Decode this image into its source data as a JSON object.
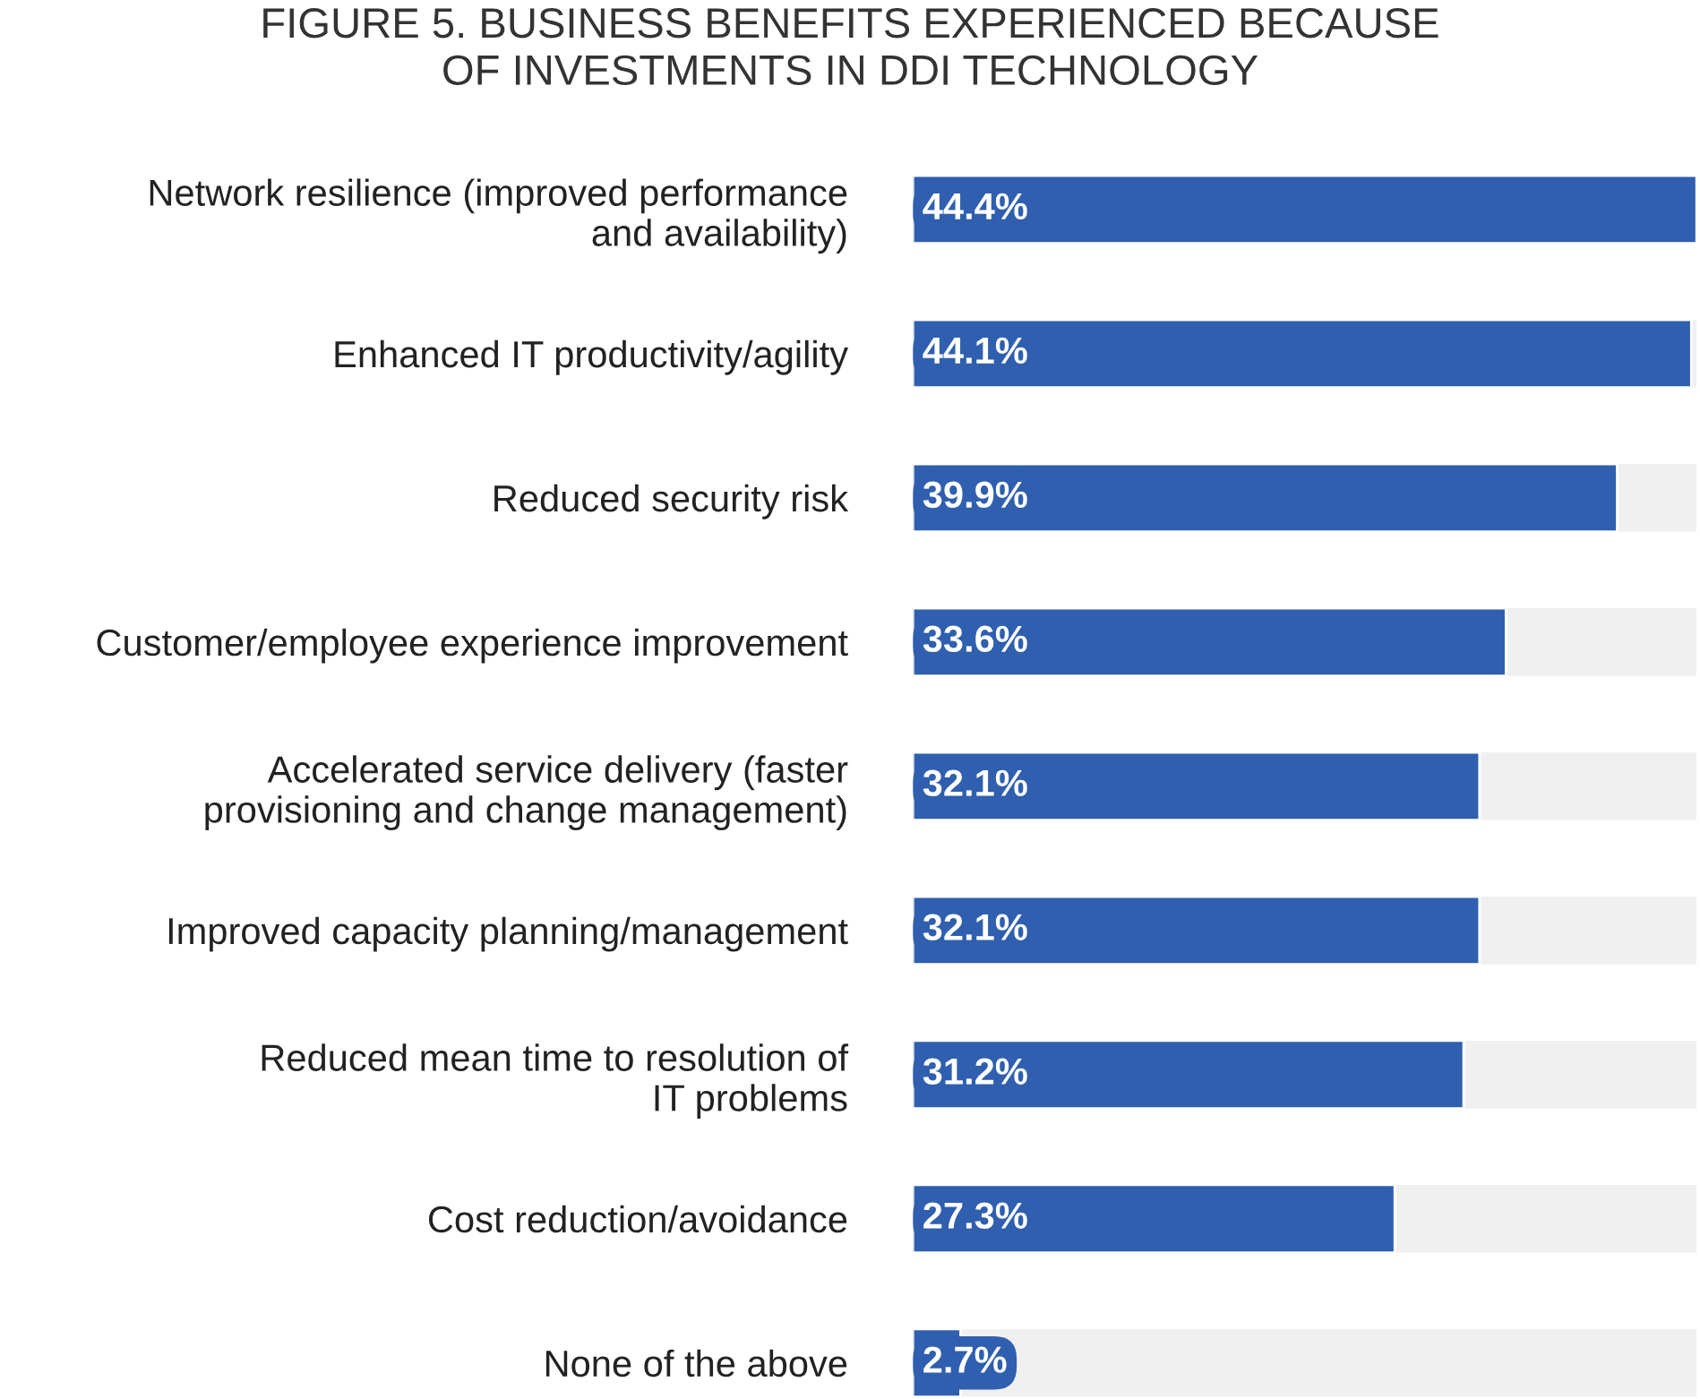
{
  "chart_data": {
    "type": "bar",
    "orientation": "horizontal",
    "title": "FIGURE 5. BUSINESS BENEFITS EXPERIENCED BECAUSE\nOF INVESTMENTS IN DDI TECHNOLOGY",
    "categories": [
      "Network resilience (improved performance\nand availability)",
      "Enhanced IT productivity/agility",
      "Reduced security risk",
      "Customer/employee experience improvement",
      "Accelerated service delivery (faster\nprovisioning and change management)",
      "Improved capacity planning/management",
      "Reduced mean time to resolution of\nIT problems",
      "Cost reduction/avoidance",
      "None of the above"
    ],
    "values": [
      44.4,
      44.1,
      39.9,
      33.6,
      32.1,
      32.1,
      31.2,
      27.3,
      2.7
    ],
    "value_labels": [
      "44.4%",
      "44.1%",
      "39.9%",
      "33.6%",
      "32.1%",
      "32.1%",
      "31.2%",
      "27.3%",
      "2.7%"
    ],
    "color": "#2f5fae",
    "grid": false,
    "legend": false
  }
}
